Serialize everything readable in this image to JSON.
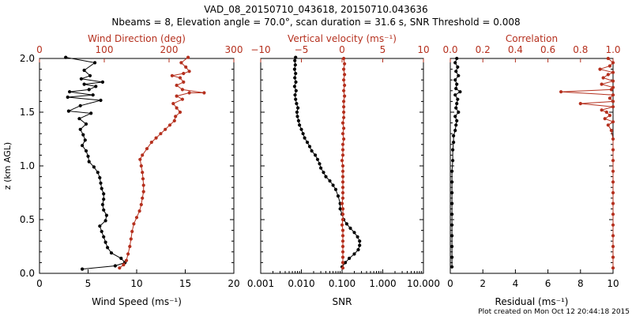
{
  "header": {
    "title": "VAD_08_20150710_043618, 20150710.043636",
    "subtitle": "Nbeams = 8, Elevation angle = 70.0°, scan duration = 31.6 s, SNR Threshold = 0.008"
  },
  "footer": {
    "plot_created": "Plot created on Mon Oct 12 20:44:18 2015"
  },
  "colors": {
    "black_series": "#000000",
    "red_series": "#b5301e"
  },
  "chart_data": [
    {
      "type": "line",
      "name": "wind-panel",
      "ylabel": "z (km AGL)",
      "xlabel_bottom": "Wind Speed (ms⁻¹)",
      "xlabel_top": "Wind Direction (deg)",
      "bottom_axis": {
        "range": [
          0,
          20
        ],
        "ticks": [
          "0",
          "5",
          "10",
          "15",
          "20"
        ]
      },
      "top_axis": {
        "range": [
          0,
          340
        ],
        "ticks": [
          "0",
          "100",
          "200",
          "300"
        ]
      },
      "y_axis": {
        "range": [
          0,
          2.0
        ],
        "ticks": [
          "0.0",
          "0.5",
          "1.0",
          "1.5",
          "2.0"
        ]
      },
      "series": [
        {
          "color": "black",
          "axis": "bottom",
          "points": [
            [
              4.4,
              0.04
            ],
            [
              7.8,
              0.07
            ],
            [
              8.8,
              0.1
            ],
            [
              8.4,
              0.14
            ],
            [
              7.4,
              0.19
            ],
            [
              7.0,
              0.24
            ],
            [
              6.8,
              0.29
            ],
            [
              6.6,
              0.34
            ],
            [
              6.4,
              0.39
            ],
            [
              6.2,
              0.44
            ],
            [
              6.8,
              0.49
            ],
            [
              6.9,
              0.54
            ],
            [
              6.6,
              0.59
            ],
            [
              6.5,
              0.64
            ],
            [
              6.6,
              0.69
            ],
            [
              6.6,
              0.74
            ],
            [
              6.4,
              0.79
            ],
            [
              6.3,
              0.84
            ],
            [
              6.2,
              0.89
            ],
            [
              6.0,
              0.94
            ],
            [
              5.6,
              0.99
            ],
            [
              5.1,
              1.04
            ],
            [
              5.0,
              1.09
            ],
            [
              4.8,
              1.14
            ],
            [
              4.4,
              1.19
            ],
            [
              4.7,
              1.24
            ],
            [
              4.5,
              1.29
            ],
            [
              4.2,
              1.34
            ],
            [
              4.8,
              1.39
            ],
            [
              4.1,
              1.44
            ],
            [
              5.3,
              1.49
            ],
            [
              3.0,
              1.51
            ],
            [
              4.2,
              1.56
            ],
            [
              6.3,
              1.61
            ],
            [
              2.9,
              1.64
            ],
            [
              5.5,
              1.66
            ],
            [
              3.1,
              1.69
            ],
            [
              5.1,
              1.71
            ],
            [
              5.8,
              1.74
            ],
            [
              4.6,
              1.76
            ],
            [
              6.5,
              1.78
            ],
            [
              4.3,
              1.81
            ],
            [
              5.2,
              1.84
            ],
            [
              4.6,
              1.89
            ],
            [
              5.7,
              1.96
            ],
            [
              2.7,
              2.01
            ]
          ]
        },
        {
          "color": "red",
          "axis": "top",
          "points": [
            [
              140,
              0.05
            ],
            [
              147,
              0.08
            ],
            [
              152,
              0.12
            ],
            [
              155,
              0.18
            ],
            [
              158,
              0.25
            ],
            [
              160,
              0.32
            ],
            [
              162,
              0.39
            ],
            [
              165,
              0.46
            ],
            [
              170,
              0.52
            ],
            [
              175,
              0.58
            ],
            [
              178,
              0.64
            ],
            [
              180,
              0.7
            ],
            [
              182,
              0.76
            ],
            [
              182,
              0.82
            ],
            [
              181,
              0.88
            ],
            [
              180,
              0.94
            ],
            [
              178,
              1.0
            ],
            [
              176,
              1.06
            ],
            [
              180,
              1.1
            ],
            [
              188,
              1.16
            ],
            [
              196,
              1.22
            ],
            [
              204,
              1.26
            ],
            [
              212,
              1.3
            ],
            [
              220,
              1.34
            ],
            [
              228,
              1.38
            ],
            [
              236,
              1.42
            ],
            [
              238,
              1.46
            ],
            [
              246,
              1.5
            ],
            [
              240,
              1.54
            ],
            [
              234,
              1.58
            ],
            [
              250,
              1.62
            ],
            [
              240,
              1.65
            ],
            [
              262,
              1.68
            ],
            [
              288,
              1.68
            ],
            [
              250,
              1.71
            ],
            [
              240,
              1.75
            ],
            [
              252,
              1.78
            ],
            [
              246,
              1.82
            ],
            [
              232,
              1.84
            ],
            [
              252,
              1.86
            ],
            [
              262,
              1.88
            ],
            [
              256,
              1.92
            ],
            [
              248,
              1.96
            ],
            [
              260,
              2.01
            ]
          ]
        }
      ]
    },
    {
      "type": "line",
      "name": "velocity-snr-panel",
      "xlabel_bottom": "SNR",
      "xlabel_top": "Vertical velocity (ms⁻¹)",
      "bottom_axis": {
        "scale": "log",
        "range": [
          0.001,
          10
        ],
        "ticks": [
          "0.001",
          "0.010",
          "0.100",
          "1.000",
          "10.000"
        ]
      },
      "top_axis": {
        "range": [
          -10,
          10
        ],
        "ticks": [
          "−10",
          "−5",
          "0",
          "5",
          "10"
        ]
      },
      "y_axis": {
        "range": [
          0,
          2.0
        ]
      },
      "series": [
        {
          "color": "black",
          "axis": "bottom",
          "points": [
            [
              0.1,
              0.06
            ],
            [
              0.12,
              0.1
            ],
            [
              0.15,
              0.14
            ],
            [
              0.2,
              0.18
            ],
            [
              0.25,
              0.22
            ],
            [
              0.27,
              0.26
            ],
            [
              0.27,
              0.3
            ],
            [
              0.24,
              0.34
            ],
            [
              0.2,
              0.38
            ],
            [
              0.16,
              0.42
            ],
            [
              0.13,
              0.46
            ],
            [
              0.11,
              0.5
            ],
            [
              0.1,
              0.55
            ],
            [
              0.09,
              0.6
            ],
            [
              0.09,
              0.65
            ],
            [
              0.08,
              0.72
            ],
            [
              0.07,
              0.78
            ],
            [
              0.06,
              0.82
            ],
            [
              0.05,
              0.86
            ],
            [
              0.04,
              0.9
            ],
            [
              0.035,
              0.94
            ],
            [
              0.03,
              0.98
            ],
            [
              0.028,
              1.02
            ],
            [
              0.025,
              1.06
            ],
            [
              0.022,
              1.1
            ],
            [
              0.018,
              1.14
            ],
            [
              0.016,
              1.18
            ],
            [
              0.014,
              1.22
            ],
            [
              0.012,
              1.26
            ],
            [
              0.011,
              1.3
            ],
            [
              0.01,
              1.34
            ],
            [
              0.009,
              1.38
            ],
            [
              0.0085,
              1.42
            ],
            [
              0.008,
              1.46
            ],
            [
              0.0078,
              1.5
            ],
            [
              0.0082,
              1.54
            ],
            [
              0.0076,
              1.58
            ],
            [
              0.0072,
              1.62
            ],
            [
              0.007,
              1.66
            ],
            [
              0.0074,
              1.7
            ],
            [
              0.0068,
              1.74
            ],
            [
              0.0073,
              1.78
            ],
            [
              0.0069,
              1.82
            ],
            [
              0.0072,
              1.86
            ],
            [
              0.0068,
              1.9
            ],
            [
              0.0071,
              1.94
            ],
            [
              0.0069,
              1.98
            ],
            [
              0.0072,
              2.01
            ]
          ]
        },
        {
          "color": "red",
          "axis": "top",
          "points": [
            [
              0.1,
              0.05
            ],
            [
              0.1,
              0.1
            ],
            [
              0.1,
              0.15
            ],
            [
              0.1,
              0.2
            ],
            [
              0.1,
              0.25
            ],
            [
              0.1,
              0.3
            ],
            [
              0.1,
              0.35
            ],
            [
              0.1,
              0.4
            ],
            [
              0.0,
              0.45
            ],
            [
              0.1,
              0.5
            ],
            [
              0.1,
              0.55
            ],
            [
              0.1,
              0.6
            ],
            [
              0.0,
              0.65
            ],
            [
              0.1,
              0.7
            ],
            [
              0.1,
              0.75
            ],
            [
              0.1,
              0.8
            ],
            [
              0.1,
              0.85
            ],
            [
              0.1,
              0.9
            ],
            [
              0.1,
              0.95
            ],
            [
              0.1,
              1.0
            ],
            [
              0.0,
              1.05
            ],
            [
              0.1,
              1.1
            ],
            [
              0.1,
              1.15
            ],
            [
              0.1,
              1.2
            ],
            [
              0.2,
              1.25
            ],
            [
              0.1,
              1.3
            ],
            [
              0.2,
              1.35
            ],
            [
              0.1,
              1.4
            ],
            [
              0.2,
              1.45
            ],
            [
              0.2,
              1.5
            ],
            [
              0.2,
              1.55
            ],
            [
              0.2,
              1.6
            ],
            [
              0.3,
              1.65
            ],
            [
              0.2,
              1.7
            ],
            [
              0.3,
              1.75
            ],
            [
              0.2,
              1.8
            ],
            [
              0.3,
              1.85
            ],
            [
              0.2,
              1.9
            ],
            [
              0.3,
              1.95
            ],
            [
              0.2,
              2.0
            ]
          ]
        }
      ]
    },
    {
      "type": "line",
      "name": "correlation-residual-panel",
      "xlabel_bottom": "Residual (ms⁻¹)",
      "xlabel_top": "Correlation",
      "bottom_axis": {
        "range": [
          0,
          10
        ],
        "ticks": [
          "0",
          "2",
          "4",
          "6",
          "8",
          "10"
        ]
      },
      "top_axis": {
        "range": [
          0,
          1.0
        ],
        "ticks": [
          "0.0",
          "0.2",
          "0.4",
          "0.6",
          "0.8",
          "1.0"
        ]
      },
      "y_axis": {
        "range": [
          0,
          2.0
        ]
      },
      "series": [
        {
          "color": "black",
          "axis": "bottom",
          "points": [
            [
              0.1,
              0.06
            ],
            [
              0.1,
              0.15
            ],
            [
              0.1,
              0.25
            ],
            [
              0.1,
              0.35
            ],
            [
              0.1,
              0.45
            ],
            [
              0.1,
              0.55
            ],
            [
              0.1,
              0.65
            ],
            [
              0.1,
              0.75
            ],
            [
              0.1,
              0.85
            ],
            [
              0.1,
              0.95
            ],
            [
              0.15,
              1.05
            ],
            [
              0.15,
              1.15
            ],
            [
              0.2,
              1.22
            ],
            [
              0.2,
              1.28
            ],
            [
              0.3,
              1.33
            ],
            [
              0.35,
              1.38
            ],
            [
              0.4,
              1.42
            ],
            [
              0.3,
              1.46
            ],
            [
              0.5,
              1.5
            ],
            [
              0.35,
              1.54
            ],
            [
              0.4,
              1.58
            ],
            [
              0.45,
              1.62
            ],
            [
              0.3,
              1.66
            ],
            [
              0.6,
              1.69
            ],
            [
              0.35,
              1.72
            ],
            [
              0.4,
              1.76
            ],
            [
              0.3,
              1.8
            ],
            [
              0.5,
              1.84
            ],
            [
              0.35,
              1.88
            ],
            [
              0.45,
              1.92
            ],
            [
              0.3,
              1.96
            ],
            [
              0.4,
              2.0
            ]
          ]
        },
        {
          "color": "red",
          "axis": "top",
          "points": [
            [
              1.0,
              0.05
            ],
            [
              1.0,
              0.15
            ],
            [
              1.0,
              0.25
            ],
            [
              1.0,
              0.35
            ],
            [
              1.0,
              0.45
            ],
            [
              1.0,
              0.55
            ],
            [
              1.0,
              0.65
            ],
            [
              1.0,
              0.75
            ],
            [
              1.0,
              0.85
            ],
            [
              1.0,
              0.95
            ],
            [
              1.0,
              1.05
            ],
            [
              1.0,
              1.15
            ],
            [
              1.0,
              1.25
            ],
            [
              0.99,
              1.33
            ],
            [
              0.97,
              1.38
            ],
            [
              1.0,
              1.41
            ],
            [
              0.95,
              1.44
            ],
            [
              0.98,
              1.47
            ],
            [
              0.96,
              1.5
            ],
            [
              0.93,
              1.52
            ],
            [
              1.0,
              1.55
            ],
            [
              0.8,
              1.58
            ],
            [
              1.0,
              1.6
            ],
            [
              0.98,
              1.63
            ],
            [
              1.0,
              1.66
            ],
            [
              0.68,
              1.69
            ],
            [
              0.99,
              1.71
            ],
            [
              1.0,
              1.73
            ],
            [
              0.93,
              1.76
            ],
            [
              1.0,
              1.79
            ],
            [
              0.94,
              1.82
            ],
            [
              0.97,
              1.85
            ],
            [
              1.0,
              1.87
            ],
            [
              0.92,
              1.9
            ],
            [
              0.98,
              1.93
            ],
            [
              1.0,
              1.96
            ],
            [
              0.97,
              2.0
            ]
          ]
        }
      ]
    }
  ]
}
